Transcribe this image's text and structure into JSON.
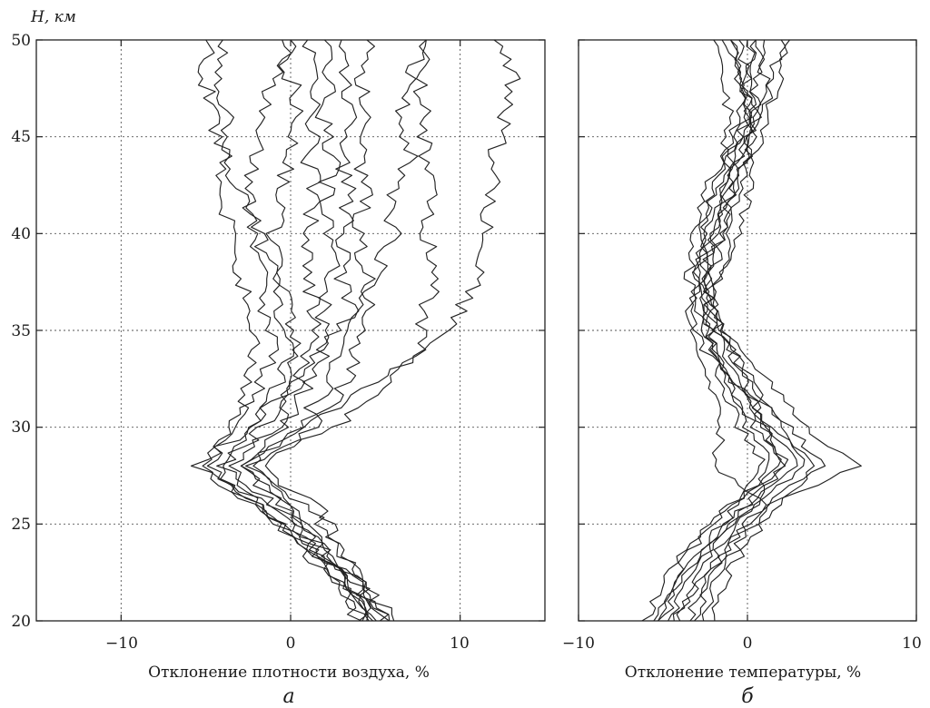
{
  "chart_data": [
    {
      "type": "line",
      "panel_label": "а",
      "ylabel": "H, км",
      "xlabel": "Отклонение плотности воздуха, %",
      "xlim": [
        -15,
        15
      ],
      "ylim": [
        20,
        50
      ],
      "xticks": [
        -10,
        0,
        10
      ],
      "xtick_labels": [
        "−10",
        "0",
        "10"
      ],
      "yticks": [
        20,
        25,
        30,
        35,
        40,
        45,
        50
      ],
      "ytick_labels": [
        "20",
        "25",
        "30",
        "35",
        "40",
        "45",
        "50"
      ],
      "grid": true,
      "y": [
        20,
        22,
        24,
        26,
        28,
        30,
        32,
        34,
        36,
        38,
        40,
        42,
        44,
        46,
        48,
        50
      ],
      "series": [
        {
          "x": [
            4.5,
            3.5,
            1.5,
            -1.5,
            -5.0,
            -3.5,
            -2.0,
            -1.0,
            -1.5,
            -1.5,
            -2.0,
            -3.0,
            -4.0,
            -4.5,
            -5.0,
            -5.0
          ]
        },
        {
          "x": [
            5.0,
            3.8,
            1.2,
            -2.0,
            -5.5,
            -3.0,
            -2.5,
            -2.0,
            -2.5,
            -3.0,
            -3.5,
            -4.0,
            -4.0,
            -3.5,
            -4.5,
            -4.0
          ]
        },
        {
          "x": [
            4.8,
            3.2,
            1.0,
            -2.5,
            -4.5,
            -2.0,
            -1.0,
            0.0,
            -0.5,
            -1.0,
            -2.0,
            -2.5,
            -2.0,
            -1.5,
            -1.0,
            0.0
          ]
        },
        {
          "x": [
            5.5,
            4.0,
            2.0,
            -1.0,
            -4.0,
            -1.5,
            0.0,
            0.5,
            0.0,
            -0.5,
            -1.0,
            -0.5,
            0.0,
            0.5,
            0.0,
            -0.5
          ]
        },
        {
          "x": [
            5.2,
            3.0,
            0.8,
            -1.8,
            -3.5,
            -1.0,
            0.5,
            1.0,
            1.5,
            1.0,
            1.0,
            1.5,
            1.0,
            1.5,
            1.5,
            1.0
          ]
        },
        {
          "x": [
            4.3,
            2.8,
            1.4,
            0.0,
            -3.0,
            -0.5,
            1.0,
            2.0,
            2.0,
            2.5,
            2.0,
            2.0,
            2.5,
            2.0,
            2.5,
            2.0
          ]
        },
        {
          "x": [
            5.8,
            4.2,
            2.5,
            1.0,
            -2.5,
            0.5,
            2.0,
            3.0,
            3.5,
            3.0,
            3.0,
            3.5,
            3.0,
            3.5,
            3.0,
            3.0
          ]
        },
        {
          "x": [
            6.0,
            4.5,
            2.8,
            1.5,
            -2.0,
            1.5,
            3.0,
            4.0,
            4.5,
            4.5,
            4.0,
            4.5,
            4.0,
            4.5,
            4.0,
            4.5
          ]
        },
        {
          "x": [
            4.0,
            2.5,
            0.5,
            -2.0,
            -5.5,
            -2.5,
            0.0,
            2.0,
            3.5,
            5.0,
            6.0,
            6.0,
            7.0,
            6.5,
            7.0,
            8.0
          ]
        },
        {
          "x": [
            4.6,
            3.3,
            1.0,
            0.5,
            -2.5,
            2.5,
            5.5,
            7.5,
            8.0,
            8.5,
            8.0,
            8.5,
            8.0,
            8.0,
            7.5,
            8.0
          ]
        },
        {
          "x": [
            5.5,
            3.9,
            1.6,
            -0.5,
            -3.0,
            1.0,
            4.0,
            8.0,
            10.0,
            11.0,
            11.5,
            12.0,
            12.0,
            12.5,
            13.0,
            12.0
          ]
        }
      ]
    },
    {
      "type": "line",
      "panel_label": "б",
      "xlabel": "Отклонение температуры, %",
      "xlim": [
        -10,
        10
      ],
      "ylim": [
        20,
        50
      ],
      "xticks": [
        -10,
        0,
        10
      ],
      "xtick_labels": [
        "−10",
        "0",
        "10"
      ],
      "yticks": [
        20,
        25,
        30,
        35,
        40,
        45,
        50
      ],
      "grid": true,
      "y": [
        20,
        22,
        24,
        26,
        28,
        30,
        32,
        34,
        36,
        38,
        40,
        42,
        44,
        46,
        48,
        50
      ],
      "series": [
        {
          "x": [
            -5.0,
            -4.0,
            -2.5,
            -0.5,
            1.0,
            -0.5,
            -1.5,
            -2.0,
            -2.5,
            -1.5,
            -1.0,
            -0.5,
            0.0,
            0.0,
            -0.5,
            -1.0
          ]
        },
        {
          "x": [
            -6.0,
            -5.0,
            -3.5,
            -1.0,
            2.0,
            0.5,
            -1.0,
            -2.0,
            -2.5,
            -2.0,
            -1.5,
            -1.0,
            -0.5,
            0.5,
            0.5,
            0.0
          ]
        },
        {
          "x": [
            -4.5,
            -3.5,
            -2.0,
            0.0,
            3.0,
            1.0,
            0.0,
            -1.5,
            -2.0,
            -2.5,
            -2.0,
            -1.5,
            -1.0,
            0.0,
            -0.5,
            -1.0
          ]
        },
        {
          "x": [
            -3.0,
            -2.5,
            -1.0,
            1.0,
            4.5,
            2.5,
            0.5,
            -1.0,
            -2.5,
            -3.0,
            -2.5,
            -2.0,
            -1.0,
            0.0,
            0.5,
            1.0
          ]
        },
        {
          "x": [
            -2.5,
            -2.0,
            -0.5,
            1.5,
            6.5,
            3.5,
            1.5,
            -0.5,
            -2.0,
            -2.5,
            -3.0,
            -2.5,
            -1.5,
            -0.5,
            0.0,
            0.5
          ]
        },
        {
          "x": [
            -5.5,
            -4.5,
            -3.0,
            -1.0,
            2.5,
            1.0,
            -0.5,
            -2.0,
            -3.0,
            -3.5,
            -3.0,
            -2.0,
            -1.5,
            -1.0,
            -1.5,
            -2.0
          ]
        },
        {
          "x": [
            -4.0,
            -3.0,
            -1.5,
            0.5,
            3.5,
            2.0,
            0.5,
            -1.0,
            -2.0,
            -2.5,
            -2.0,
            -1.0,
            0.0,
            0.5,
            1.0,
            0.5
          ]
        },
        {
          "x": [
            -2.0,
            -1.5,
            0.0,
            2.0,
            4.0,
            1.5,
            -0.5,
            -2.5,
            -3.5,
            -3.0,
            -2.5,
            -1.5,
            -0.5,
            1.0,
            1.5,
            2.0
          ]
        },
        {
          "x": [
            -3.5,
            -2.5,
            -1.0,
            1.0,
            -2.0,
            -1.5,
            -2.0,
            -3.0,
            -3.5,
            -2.5,
            -1.5,
            -1.0,
            0.0,
            0.5,
            -0.5,
            -1.5
          ]
        },
        {
          "x": [
            -4.5,
            -3.0,
            -2.0,
            0.5,
            2.0,
            1.0,
            0.0,
            -1.0,
            -2.0,
            -1.5,
            -0.5,
            0.0,
            0.5,
            1.0,
            2.0,
            2.5
          ]
        },
        {
          "x": [
            -5.5,
            -4.0,
            -2.5,
            0.0,
            1.5,
            0.0,
            -1.0,
            -2.0,
            -2.5,
            -3.0,
            -2.0,
            -1.5,
            -0.5,
            0.0,
            0.0,
            -0.5
          ]
        }
      ]
    }
  ]
}
